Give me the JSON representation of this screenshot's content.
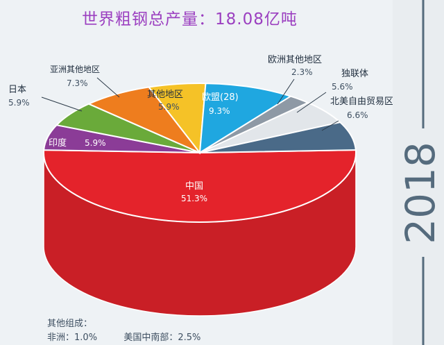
{
  "title": "世界粗钢总产量：18.08亿吨",
  "year": "2018",
  "chart_data": {
    "type": "pie",
    "title": "世界粗钢总产量：18.08亿吨",
    "slices": [
      {
        "name": "中国",
        "value": 51.3,
        "label": "51.3%",
        "color": "#e4232b"
      },
      {
        "name": "印度",
        "value": 5.9,
        "label": "5.9%",
        "color": "#8b3c97"
      },
      {
        "name": "日本",
        "value": 5.9,
        "label": "5.9%",
        "color": "#6aaa3a"
      },
      {
        "name": "亚洲其他地区",
        "value": 7.3,
        "label": "7.3%",
        "color": "#ee7d1e"
      },
      {
        "name": "其他地区",
        "value": 5.9,
        "label": "5.9%",
        "color": "#f5c227"
      },
      {
        "name": "欧盟(28)",
        "value": 9.3,
        "label": "9.3%",
        "color": "#1fa7e0"
      },
      {
        "name": "欧洲其他地区",
        "value": 2.3,
        "label": "2.3%",
        "color": "#8e99a5"
      },
      {
        "name": "独联体",
        "value": 5.6,
        "label": "5.6%",
        "color": "#e2e6ea"
      },
      {
        "name": "北美自由贸易区",
        "value": 6.6,
        "label": "6.6%",
        "color": "#4a6a88"
      }
    ],
    "other_breakdown_title": "其他组成：",
    "other_breakdown": [
      {
        "name": "非洲",
        "label": "1.0%"
      },
      {
        "name": "美国中南部",
        "label": "2.5%"
      }
    ]
  }
}
